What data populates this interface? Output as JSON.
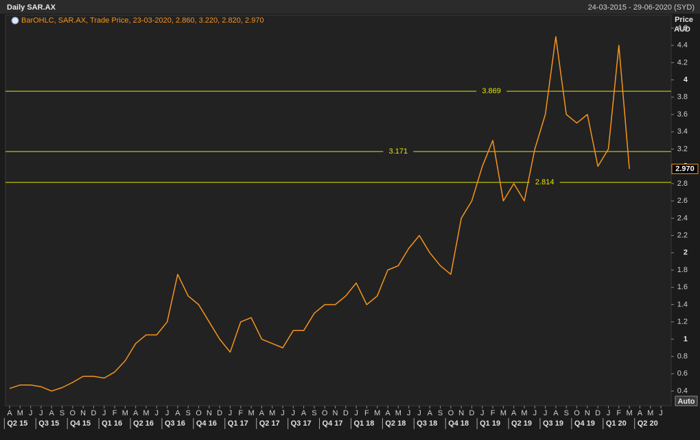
{
  "chart_data": {
    "type": "line",
    "title": "Daily SAR.AX",
    "date_range": "24-03-2015 - 29-06-2020 (SYD)",
    "legend_text": "BarOHLC, SAR.AX, Trade Price, 23-03-2020, 2.860, 3.220, 2.820, 2.970",
    "ylabel": "Price",
    "yunit": "AUD",
    "auto_button": "Auto",
    "color": "#f7941d",
    "x": [
      "2015-04",
      "2015-05",
      "2015-06",
      "2015-07",
      "2015-08",
      "2015-09",
      "2015-10",
      "2015-11",
      "2015-12",
      "2016-01",
      "2016-02",
      "2016-03",
      "2016-04",
      "2016-05",
      "2016-06",
      "2016-07",
      "2016-08",
      "2016-09",
      "2016-10",
      "2016-11",
      "2016-12",
      "2017-01",
      "2017-02",
      "2017-03",
      "2017-04",
      "2017-05",
      "2017-06",
      "2017-07",
      "2017-08",
      "2017-09",
      "2017-10",
      "2017-11",
      "2017-12",
      "2018-01",
      "2018-02",
      "2018-03",
      "2018-04",
      "2018-05",
      "2018-06",
      "2018-07",
      "2018-08",
      "2018-09",
      "2018-10",
      "2018-11",
      "2018-12",
      "2019-01",
      "2019-02",
      "2019-03",
      "2019-04",
      "2019-05",
      "2019-06",
      "2019-07",
      "2019-08",
      "2019-09",
      "2019-10",
      "2019-11",
      "2019-12",
      "2020-01",
      "2020-02",
      "2020-03"
    ],
    "values": [
      0.43,
      0.47,
      0.47,
      0.45,
      0.4,
      0.44,
      0.5,
      0.57,
      0.57,
      0.55,
      0.62,
      0.75,
      0.95,
      1.05,
      1.05,
      1.2,
      1.75,
      1.5,
      1.4,
      1.2,
      1.0,
      0.85,
      1.2,
      1.25,
      1.0,
      0.95,
      0.9,
      1.1,
      1.1,
      1.3,
      1.4,
      1.4,
      1.5,
      1.65,
      1.4,
      1.5,
      1.8,
      1.85,
      2.05,
      2.2,
      2.0,
      1.85,
      1.75,
      2.4,
      2.6,
      3.0,
      3.3,
      2.6,
      2.8,
      2.6,
      3.2,
      3.6,
      4.5,
      3.6,
      3.5,
      3.6,
      3.0,
      3.2,
      4.4,
      2.97
    ],
    "xlim": [
      "2015-04",
      "2020-06"
    ],
    "xticks": [
      {
        "value": "2015-04",
        "label": "A"
      },
      {
        "value": "2015-05",
        "label": "M"
      },
      {
        "value": "2015-06",
        "label": "J"
      },
      {
        "value": "2015-07",
        "label": "J"
      },
      {
        "value": "2015-08",
        "label": "A"
      },
      {
        "value": "2015-09",
        "label": "S"
      },
      {
        "value": "2015-10",
        "label": "O"
      },
      {
        "value": "2015-11",
        "label": "N"
      },
      {
        "value": "2015-12",
        "label": "D"
      },
      {
        "value": "2016-01",
        "label": "J"
      },
      {
        "value": "2016-02",
        "label": "F"
      },
      {
        "value": "2016-03",
        "label": "M"
      },
      {
        "value": "2016-04",
        "label": "A"
      },
      {
        "value": "2016-05",
        "label": "M"
      },
      {
        "value": "2016-06",
        "label": "J"
      },
      {
        "value": "2016-07",
        "label": "J"
      },
      {
        "value": "2016-08",
        "label": "A"
      },
      {
        "value": "2016-09",
        "label": "S"
      },
      {
        "value": "2016-10",
        "label": "O"
      },
      {
        "value": "2016-11",
        "label": "N"
      },
      {
        "value": "2016-12",
        "label": "D"
      },
      {
        "value": "2017-01",
        "label": "J"
      },
      {
        "value": "2017-02",
        "label": "F"
      },
      {
        "value": "2017-03",
        "label": "M"
      },
      {
        "value": "2017-04",
        "label": "A"
      },
      {
        "value": "2017-05",
        "label": "M"
      },
      {
        "value": "2017-06",
        "label": "J"
      },
      {
        "value": "2017-07",
        "label": "J"
      },
      {
        "value": "2017-08",
        "label": "A"
      },
      {
        "value": "2017-09",
        "label": "S"
      },
      {
        "value": "2017-10",
        "label": "O"
      },
      {
        "value": "2017-11",
        "label": "N"
      },
      {
        "value": "2017-12",
        "label": "D"
      },
      {
        "value": "2018-01",
        "label": "J"
      },
      {
        "value": "2018-02",
        "label": "F"
      },
      {
        "value": "2018-03",
        "label": "M"
      },
      {
        "value": "2018-04",
        "label": "A"
      },
      {
        "value": "2018-05",
        "label": "M"
      },
      {
        "value": "2018-06",
        "label": "J"
      },
      {
        "value": "2018-07",
        "label": "J"
      },
      {
        "value": "2018-08",
        "label": "A"
      },
      {
        "value": "2018-09",
        "label": "S"
      },
      {
        "value": "2018-10",
        "label": "O"
      },
      {
        "value": "2018-11",
        "label": "N"
      },
      {
        "value": "2018-12",
        "label": "D"
      },
      {
        "value": "2019-01",
        "label": "J"
      },
      {
        "value": "2019-02",
        "label": "F"
      },
      {
        "value": "2019-03",
        "label": "M"
      },
      {
        "value": "2019-04",
        "label": "A"
      },
      {
        "value": "2019-05",
        "label": "M"
      },
      {
        "value": "2019-06",
        "label": "J"
      },
      {
        "value": "2019-07",
        "label": "J"
      },
      {
        "value": "2019-08",
        "label": "A"
      },
      {
        "value": "2019-09",
        "label": "S"
      },
      {
        "value": "2019-10",
        "label": "O"
      },
      {
        "value": "2019-11",
        "label": "N"
      },
      {
        "value": "2019-12",
        "label": "D"
      },
      {
        "value": "2020-01",
        "label": "J"
      },
      {
        "value": "2020-02",
        "label": "F"
      },
      {
        "value": "2020-03",
        "label": "M"
      },
      {
        "value": "2020-04",
        "label": "A"
      },
      {
        "value": "2020-05",
        "label": "M"
      },
      {
        "value": "2020-06",
        "label": "J"
      }
    ],
    "quarters": [
      {
        "value": "2015-04",
        "label": "Q2 15"
      },
      {
        "value": "2015-07",
        "label": "Q3 15"
      },
      {
        "value": "2015-10",
        "label": "Q4 15"
      },
      {
        "value": "2016-01",
        "label": "Q1 16"
      },
      {
        "value": "2016-04",
        "label": "Q2 16"
      },
      {
        "value": "2016-07",
        "label": "Q3 16"
      },
      {
        "value": "2016-10",
        "label": "Q4 16"
      },
      {
        "value": "2017-01",
        "label": "Q1 17"
      },
      {
        "value": "2017-04",
        "label": "Q2 17"
      },
      {
        "value": "2017-07",
        "label": "Q3 17"
      },
      {
        "value": "2017-10",
        "label": "Q4 17"
      },
      {
        "value": "2018-01",
        "label": "Q1 18"
      },
      {
        "value": "2018-04",
        "label": "Q2 18"
      },
      {
        "value": "2018-07",
        "label": "Q3 18"
      },
      {
        "value": "2018-10",
        "label": "Q4 18"
      },
      {
        "value": "2019-01",
        "label": "Q1 19"
      },
      {
        "value": "2019-04",
        "label": "Q2 19"
      },
      {
        "value": "2019-07",
        "label": "Q3 19"
      },
      {
        "value": "2019-10",
        "label": "Q4 19"
      },
      {
        "value": "2020-01",
        "label": "Q1 20"
      },
      {
        "value": "2020-04",
        "label": "Q2 20"
      }
    ],
    "ylim": [
      0.23,
      4.75
    ],
    "yticks": [
      0.4,
      0.6,
      0.8,
      1,
      1.2,
      1.4,
      1.6,
      1.8,
      2,
      2.2,
      2.4,
      2.6,
      2.8,
      3,
      3.2,
      3.4,
      3.6,
      3.8,
      4,
      4.2,
      4.4,
      4.6
    ],
    "hlines": [
      3.869,
      3.171,
      2.814
    ],
    "hline_color": "#e6e600",
    "last_price": {
      "value": 2.97,
      "label": "2.970"
    }
  }
}
